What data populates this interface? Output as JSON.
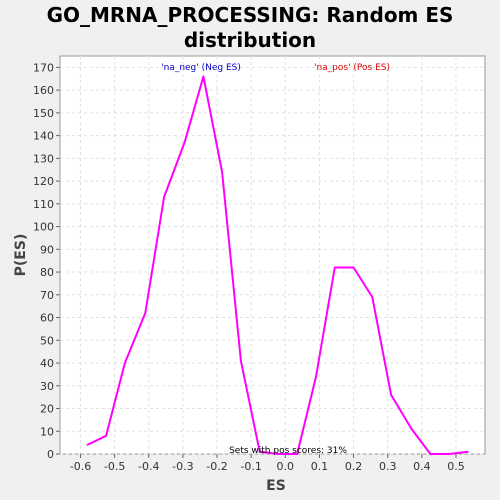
{
  "chart_data": {
    "type": "line",
    "title_lines": [
      "GO_MRNA_PROCESSING: Random ES",
      "distribution"
    ],
    "xlabel": "ES",
    "ylabel": "P(ES)",
    "xlim": [
      -0.66,
      0.585
    ],
    "ylim": [
      0,
      175
    ],
    "xticks": [
      -0.6,
      -0.5,
      -0.4,
      -0.3,
      -0.2,
      -0.1,
      0.0,
      0.1,
      0.2,
      0.3,
      0.4,
      0.5
    ],
    "xtick_labels": [
      "-0.6",
      "-0.5",
      "-0.4",
      "-0.3",
      "-0.2",
      "-0.1",
      "0.0",
      "0.1",
      "0.2",
      "0.3",
      "0.4",
      "0.5"
    ],
    "yticks": [
      0,
      10,
      20,
      30,
      40,
      50,
      60,
      70,
      80,
      90,
      100,
      110,
      120,
      130,
      140,
      150,
      160,
      170
    ],
    "ytick_labels": [
      "0",
      "10",
      "20",
      "30",
      "40",
      "50",
      "60",
      "70",
      "80",
      "90",
      "100",
      "110",
      "120",
      "130",
      "140",
      "150",
      "160",
      "170"
    ],
    "grid": true,
    "series": [
      {
        "name": "Random ES distribution",
        "color": "#ff00ff",
        "x": [
          -0.58,
          -0.525,
          -0.47,
          -0.41,
          -0.355,
          -0.295,
          -0.24,
          -0.185,
          -0.13,
          -0.075,
          -0.02,
          0.035,
          0.09,
          0.145,
          0.2,
          0.255,
          0.31,
          0.37,
          0.425,
          0.48,
          0.535
        ],
        "y": [
          4,
          8,
          40,
          62,
          113,
          137,
          166,
          124,
          41,
          1,
          0,
          0,
          34,
          82,
          82,
          69,
          26,
          11,
          0,
          0,
          1
        ]
      }
    ],
    "annotations": [
      {
        "id": "neg",
        "text": "'na_neg' (Neg ES)",
        "color": "#0000cc"
      },
      {
        "id": "pos",
        "text": "'na_pos' (Pos ES)",
        "color": "#dd0000"
      },
      {
        "id": "sets",
        "text": "Sets with pos scores: 31%",
        "color": "#000000"
      }
    ]
  }
}
